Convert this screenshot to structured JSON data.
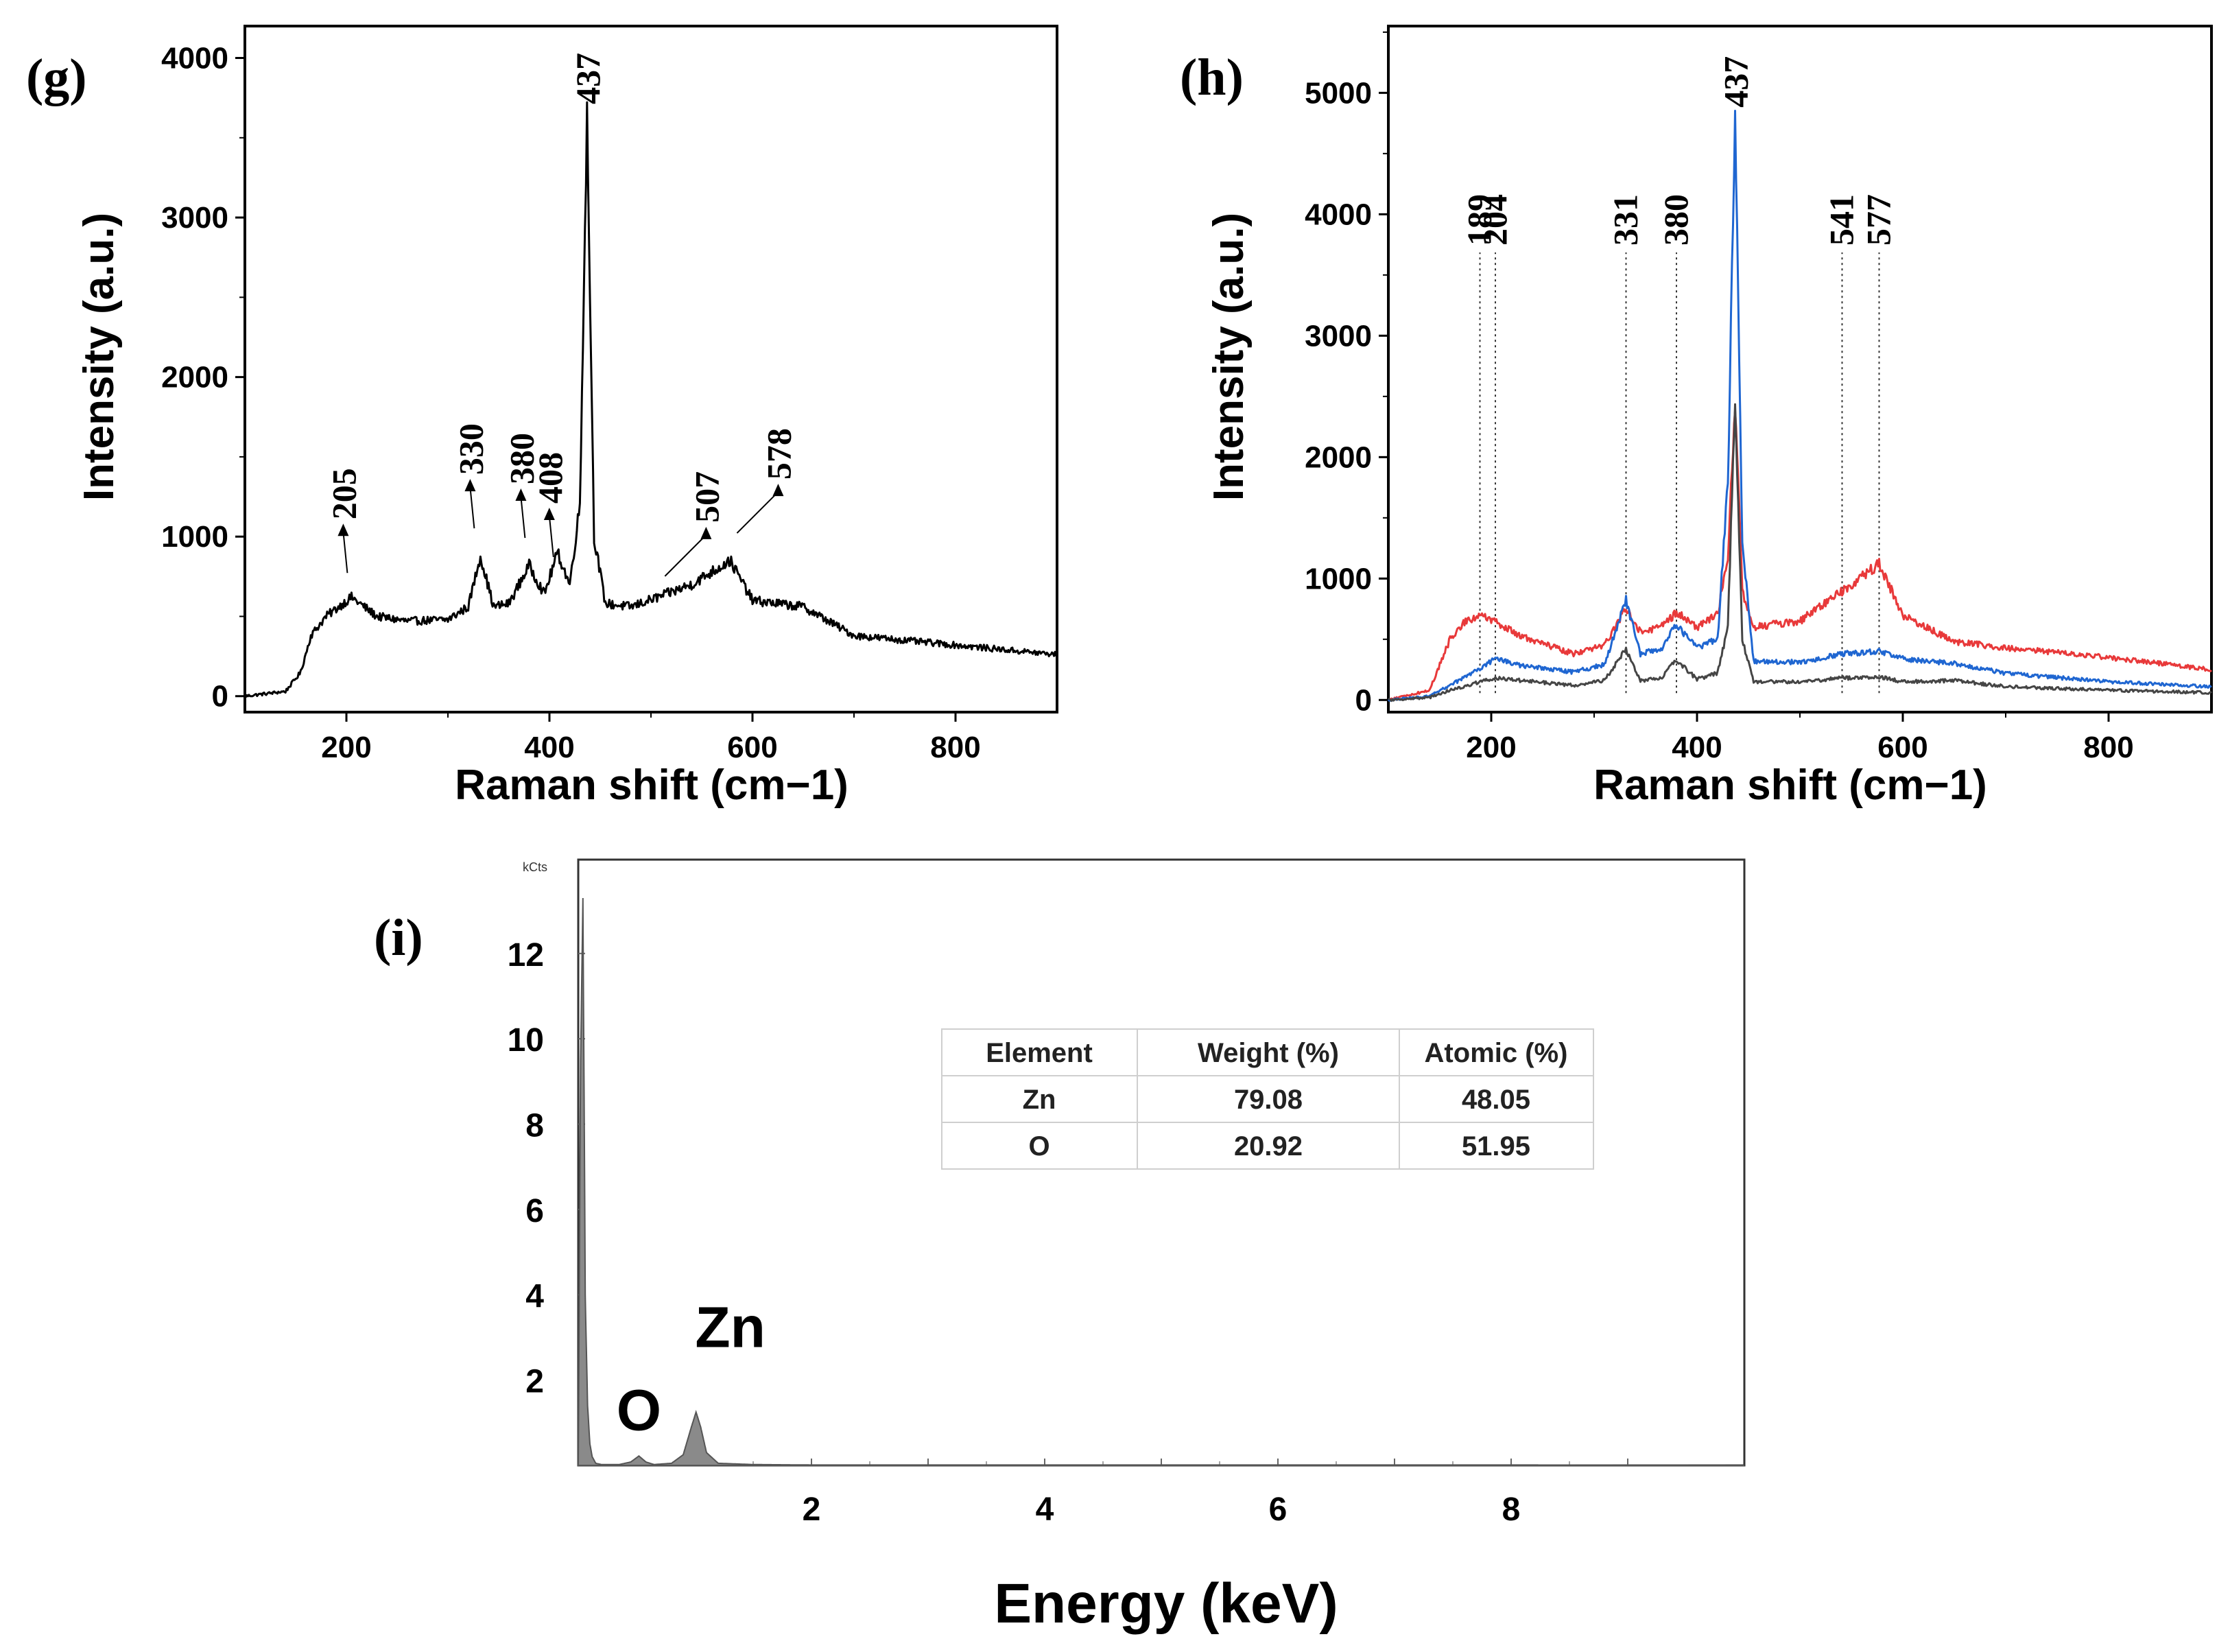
{
  "chart_data": [
    {
      "panel": "(g)",
      "type": "line",
      "xlabel": "Raman shift (cm−1)",
      "ylabel": "Intensity (a.u.)",
      "xlim": [
        100,
        900
      ],
      "ylim": [
        -100,
        4200
      ],
      "xticks": [
        "200",
        "400",
        "600",
        "800"
      ],
      "yticks": [
        "0",
        "1000",
        "2000",
        "3000",
        "4000"
      ],
      "series": [
        {
          "name": "spectrum",
          "color": "#000000",
          "x": [
            100,
            140,
            155,
            165,
            180,
            205,
            230,
            260,
            300,
            320,
            332,
            345,
            360,
            380,
            395,
            408,
            420,
            430,
            437,
            444,
            455,
            480,
            507,
            540,
            578,
            600,
            650,
            700,
            800,
            900
          ],
          "y": [
            0,
            30,
            150,
            380,
            500,
            620,
            500,
            470,
            480,
            560,
            880,
            560,
            580,
            820,
            640,
            900,
            700,
            1200,
            3650,
            1000,
            580,
            560,
            620,
            700,
            850,
            600,
            560,
            380,
            320,
            260
          ]
        }
      ],
      "peak_labels": [
        {
          "text": "205",
          "x": 205,
          "y": 600
        },
        {
          "text": "330",
          "x": 330,
          "y": 880
        },
        {
          "text": "380",
          "x": 380,
          "y": 820
        },
        {
          "text": "408",
          "x": 408,
          "y": 700
        },
        {
          "text": "437",
          "x": 437,
          "y": 3650
        },
        {
          "text": "507",
          "x": 507,
          "y": 580
        },
        {
          "text": "578",
          "x": 578,
          "y": 850
        }
      ]
    },
    {
      "panel": "(h)",
      "type": "line",
      "xlabel": "Raman shift (cm−1)",
      "ylabel": "Intensity (a.u.)",
      "xlim": [
        100,
        900
      ],
      "ylim": [
        -100,
        5550
      ],
      "xticks": [
        "200",
        "400",
        "600",
        "800"
      ],
      "yticks": [
        "0",
        "1000",
        "2000",
        "3000",
        "4000",
        "5000"
      ],
      "series": [
        {
          "name": "red",
          "color": "#e8393a",
          "x": [
            100,
            140,
            160,
            175,
            189,
            204,
            230,
            280,
            310,
            331,
            345,
            365,
            380,
            400,
            420,
            430,
            437,
            444,
            455,
            500,
            541,
            577,
            600,
            650,
            700,
            800,
            900
          ],
          "y": [
            0,
            80,
            500,
            650,
            700,
            640,
            520,
            380,
            450,
            760,
            560,
            600,
            720,
            600,
            700,
            1200,
            2450,
            900,
            600,
            650,
            900,
            1120,
            700,
            480,
            430,
            350,
            250
          ]
        },
        {
          "name": "blue",
          "color": "#1f66d1",
          "x": [
            100,
            140,
            160,
            189,
            204,
            230,
            280,
            310,
            331,
            345,
            365,
            380,
            400,
            420,
            430,
            437,
            444,
            455,
            500,
            541,
            577,
            600,
            650,
            700,
            800,
            900
          ],
          "y": [
            0,
            30,
            120,
            260,
            340,
            280,
            230,
            290,
            820,
            380,
            420,
            620,
            430,
            500,
            1800,
            4800,
            1300,
            320,
            310,
            380,
            400,
            340,
            300,
            220,
            150,
            110
          ]
        },
        {
          "name": "gray",
          "color": "#454545",
          "x": [
            100,
            140,
            160,
            189,
            204,
            230,
            280,
            310,
            331,
            345,
            365,
            380,
            400,
            420,
            430,
            437,
            444,
            455,
            500,
            541,
            577,
            600,
            650,
            700,
            800,
            900
          ],
          "y": [
            0,
            20,
            80,
            150,
            180,
            160,
            120,
            160,
            420,
            160,
            180,
            330,
            170,
            220,
            600,
            2500,
            500,
            150,
            150,
            180,
            190,
            150,
            160,
            110,
            80,
            60
          ]
        }
      ],
      "reference_lines": [
        "189",
        "204",
        "331",
        "380",
        "541",
        "577"
      ],
      "peak_labels": [
        {
          "text": "437",
          "x": 437,
          "y": 4800
        }
      ]
    },
    {
      "panel": "(i)",
      "type": "area",
      "xlabel": "Energy (keV)",
      "ylabel": "kCts",
      "xlim": [
        0,
        10
      ],
      "ylim": [
        0,
        14.2
      ],
      "xticks": [
        "2",
        "4",
        "6",
        "8"
      ],
      "yticks": [
        "2",
        "4",
        "6",
        "8",
        "10",
        "12"
      ],
      "series": [
        {
          "name": "EDS spectrum",
          "color": "#555555",
          "x": [
            0.0,
            0.02,
            0.04,
            0.05,
            0.06,
            0.08,
            0.1,
            0.12,
            0.15,
            0.2,
            0.35,
            0.45,
            0.52,
            0.58,
            0.65,
            0.8,
            0.9,
            0.97,
            1.01,
            1.05,
            1.1,
            1.2,
            1.5,
            2.0,
            4.0,
            6.0,
            8.0,
            10.0
          ],
          "y": [
            0,
            9.5,
            13.3,
            8.8,
            4.0,
            1.4,
            0.5,
            0.2,
            0.05,
            0.02,
            0.02,
            0.08,
            0.22,
            0.08,
            0.02,
            0.05,
            0.25,
            0.9,
            1.25,
            0.9,
            0.3,
            0.05,
            0.02,
            0.01,
            0.01,
            0.01,
            0.01,
            0.0
          ]
        }
      ],
      "element_labels": [
        {
          "text": "O",
          "x": 0.52,
          "y": 0.22
        },
        {
          "text": "Zn",
          "x": 1.01,
          "y": 1.25
        }
      ],
      "table": {
        "headers": [
          "Element",
          "Weight (%)",
          "Atomic (%)"
        ],
        "rows": [
          [
            "Zn",
            "79.08",
            "48.05"
          ],
          [
            "O",
            "20.92",
            "51.95"
          ]
        ]
      }
    }
  ]
}
